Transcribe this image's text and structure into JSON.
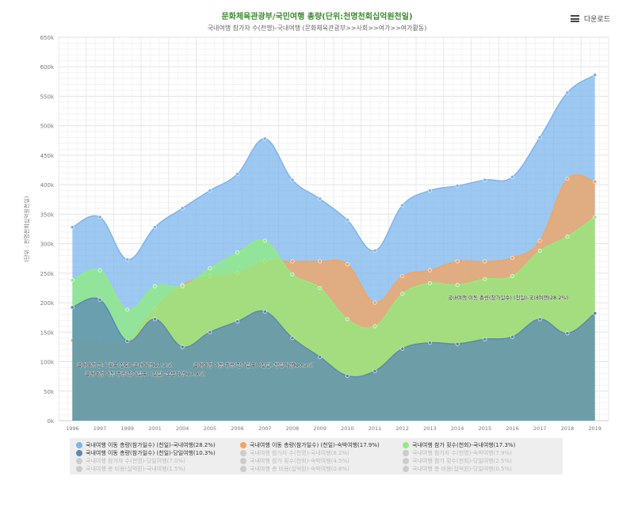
{
  "header": {
    "title": "문화체육관광부/국민여행 총량(단위:천명천회십억원천일)",
    "subtitle": "국내여행 참가자 수(천명)-국내여행 (문화체육관광부>>사회>>여가>>여가활동)",
    "download_label": "다운로드"
  },
  "chart_data": {
    "type": "area",
    "ylabel": "(단위 : 천명천회십억원천일)",
    "ylim": [
      0,
      650000
    ],
    "yticks": [
      0,
      50000,
      100000,
      150000,
      200000,
      250000,
      300000,
      350000,
      400000,
      450000,
      500000,
      550000,
      600000,
      650000
    ],
    "ytick_labels": [
      "0k",
      "50k",
      "100k",
      "150k",
      "200k",
      "250k",
      "300k",
      "350k",
      "400k",
      "450k",
      "500k",
      "550k",
      "600k",
      "650k"
    ],
    "x": [
      "1996",
      "1997",
      "1999",
      "2001",
      "2004",
      "2005",
      "2006",
      "2007",
      "2008",
      "2009",
      "2010",
      "2011",
      "2012",
      "2013",
      "2014",
      "2015",
      "2016",
      "2017",
      "2018",
      "2019"
    ],
    "grid": true,
    "series": [
      {
        "name": "국내여행 이동 총량(참가일수) (천일)-국내여행(28.2%)",
        "color": "#7cb5ec",
        "visible": true,
        "values": [
          328000,
          345000,
          273000,
          328000,
          360000,
          390000,
          418000,
          478000,
          408000,
          376000,
          340000,
          288000,
          365000,
          390000,
          398000,
          408000,
          413000,
          480000,
          556000,
          586000
        ]
      },
      {
        "name": "국내여행 이동 총량(참가일수) (천일)-숙박여행(17.9%)",
        "color": "#f7a35c",
        "visible": true,
        "values": [
          136000,
          135000,
          135000,
          190000,
          230000,
          245000,
          250000,
          270000,
          270000,
          270000,
          265000,
          200000,
          245000,
          255000,
          270000,
          270000,
          276000,
          305000,
          410000,
          405000
        ]
      },
      {
        "name": "국내여행 참가 횟수(천회)-국내여행(17.3%)",
        "color": "#90ed7d",
        "visible": true,
        "values": [
          238000,
          255000,
          188000,
          228000,
          228000,
          258000,
          285000,
          305000,
          248000,
          225000,
          172000,
          160000,
          215000,
          233000,
          230000,
          240000,
          245000,
          288000,
          312000,
          345000
        ]
      },
      {
        "name": "국내여행 이동 총량(참가일수) (천일)-당일여행(10.3%)",
        "color": "#5b88b5",
        "visible": true,
        "values": [
          192000,
          205000,
          135000,
          172000,
          125000,
          150000,
          168000,
          185000,
          140000,
          108000,
          76000,
          84000,
          122000,
          132000,
          130000,
          138000,
          142000,
          172000,
          148000,
          182000
        ]
      },
      {
        "name": "국내여행 참가자 수(천명)-국내여행(8.2%)",
        "visible": false
      },
      {
        "name": "국내여행 참가자 수(천명)-숙박여행(7.9%)",
        "visible": false
      },
      {
        "name": "국내여행 참가자 수(천명)-당일여행(7.0%)",
        "visible": false
      },
      {
        "name": "국내여행 참가 횟수(천회)-숙박여행(4.5%)",
        "visible": false
      },
      {
        "name": "국내여행 참가 횟수(천회)-당일여행(2.5%)",
        "visible": false
      },
      {
        "name": "국내여행 총 비용(십억원)-국내여행(1.5%)",
        "visible": false
      },
      {
        "name": "국내여행 총 비용(십억원)-숙박여행(0.8%)",
        "visible": false
      },
      {
        "name": "국내여행 총 비용(십억원)-당일여행(0.5%)",
        "visible": false
      }
    ],
    "annotations": [
      {
        "text": "국내여행 이동 총량(참가일수) (천일)-국내여행(28.2%)",
        "series": 0
      },
      {
        "text": "국내여행 참가 횟수(천회)-국내여행(17.3%)",
        "series": 2
      },
      {
        "text": "국내여행 이동 총량(참가일수) (천일)-당일여행(10.3%)",
        "series": 3
      },
      {
        "text": "국내여행 이동 총량(참가일수) (천일)-숙박여행(17.9%)",
        "series": 1
      }
    ]
  }
}
